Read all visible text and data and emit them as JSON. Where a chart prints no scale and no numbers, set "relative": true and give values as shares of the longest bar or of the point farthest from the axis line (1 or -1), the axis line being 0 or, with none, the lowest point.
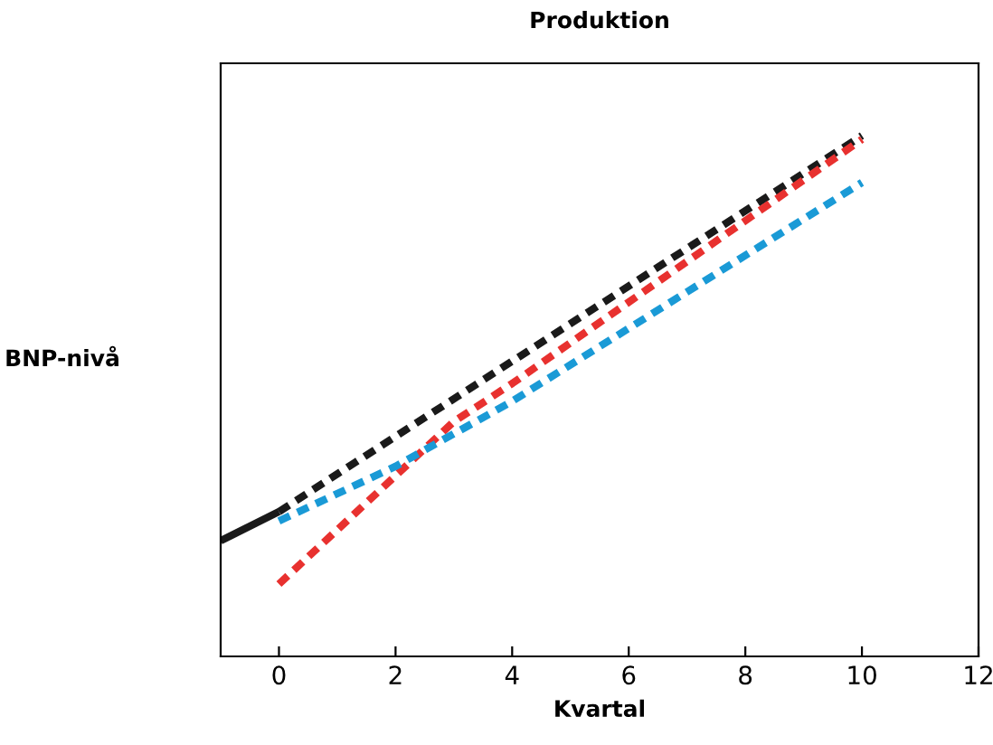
{
  "chart_data": {
    "type": "line",
    "title": "Produktion",
    "xlabel": "Kvartal",
    "ylabel": "BNP-nivå",
    "relative": true,
    "tick_labels": "x",
    "grid": false,
    "legend": false,
    "xlim": [
      -1,
      12
    ],
    "xticks": [
      0,
      2,
      4,
      6,
      8,
      10,
      12
    ],
    "series": [
      {
        "color": "#1a1a1a",
        "line_style": "solid",
        "x": [
          -1,
          0
        ],
        "values": [
          0.222,
          0.278
        ]
      },
      {
        "color": "#1a1a1a",
        "line_style": "dashed",
        "x": [
          0,
          10
        ],
        "values": [
          0.278,
          1.0
        ]
      },
      {
        "color": "#e8312f",
        "line_style": "dashed",
        "x": [
          0,
          1,
          2,
          3,
          4,
          10
        ],
        "values": [
          0.139,
          0.243,
          0.347,
          0.451,
          0.524,
          0.993
        ]
      },
      {
        "color": "#1a9ad6",
        "line_style": "dashed",
        "x": [
          0,
          2,
          4,
          10
        ],
        "values": [
          0.26,
          0.365,
          0.49,
          0.91
        ]
      }
    ]
  }
}
